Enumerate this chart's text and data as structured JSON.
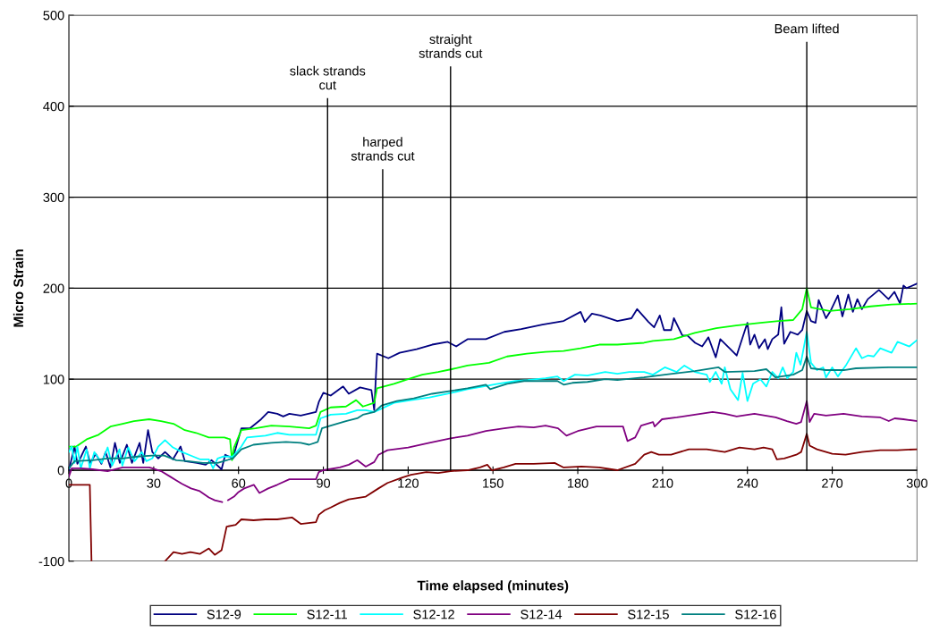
{
  "chart_data": {
    "type": "line",
    "xlabel": "Time elapsed (minutes)",
    "ylabel": "Micro Strain",
    "xlim": [
      0,
      300
    ],
    "xticks": [
      0,
      30,
      60,
      90,
      120,
      150,
      180,
      210,
      240,
      270,
      300
    ],
    "ylim": [
      -100,
      500
    ],
    "yticks": [
      -100,
      0,
      100,
      200,
      300,
      400,
      500
    ],
    "grid": "y",
    "legend": "bottom",
    "marker": "none",
    "line_style": "solid",
    "ref_lines": [
      {
        "axis": "x",
        "value": 91.5,
        "label": "slack strands\ncut",
        "color": "#000000"
      },
      {
        "axis": "x",
        "value": 111,
        "label": "harped\nstrands cut",
        "color": "#000000"
      },
      {
        "axis": "x",
        "value": 135,
        "label": "straight\nstrands cut",
        "color": "#000000"
      },
      {
        "axis": "x",
        "value": 261,
        "label": "Beam lifted",
        "color": "#000000"
      }
    ],
    "series": [
      {
        "name": "S12-9",
        "color": "#000080",
        "x": [
          0,
          2,
          3,
          4,
          6,
          7.5,
          9.5,
          11.5,
          13,
          14.7,
          16.3,
          18,
          20.5,
          22.3,
          25,
          26.3,
          28,
          29.5,
          31.6,
          34,
          36.8,
          39.5,
          41,
          45.3,
          48.4,
          50.5,
          52.6,
          54,
          55.3,
          58,
          61,
          64,
          68,
          70.5,
          73.7,
          75.8,
          78,
          82,
          87.4,
          88.4,
          90,
          92.6,
          97,
          99,
          103,
          107,
          108,
          109,
          113,
          117,
          123,
          128.5,
          134,
          137,
          141,
          147.5,
          154,
          160,
          167.5,
          175,
          181,
          182.5,
          185,
          188,
          194,
          199,
          201,
          205,
          207,
          209,
          210.5,
          213,
          214,
          217,
          218.8,
          221.5,
          224,
          226.2,
          228.8,
          230.4,
          234,
          236.2,
          240,
          241,
          242.5,
          244.1,
          246.2,
          247.2,
          248.8,
          250.9,
          252,
          253,
          255.2,
          257.8,
          259.4,
          261,
          262.5,
          264.1,
          265.2,
          267.8,
          269.4,
          272,
          273.6,
          275.7,
          277.3,
          278.9,
          280.5,
          282.6,
          286.5,
          289.9,
          292,
          294,
          295.2,
          296.3,
          300
        ],
        "values": [
          0,
          26,
          7,
          13,
          26,
          8,
          18,
          7,
          20,
          3,
          30,
          8,
          28,
          8,
          30,
          8,
          44,
          20,
          13,
          20,
          12,
          26,
          10,
          8,
          6,
          11,
          5,
          1,
          17,
          13,
          46,
          46,
          56,
          64,
          62,
          59,
          62,
          60,
          64,
          75,
          85,
          82,
          92,
          84,
          91,
          88,
          66,
          128,
          123,
          129,
          133,
          138,
          141,
          136,
          144,
          144,
          152,
          155,
          160,
          164,
          174,
          163,
          172,
          170,
          164,
          167,
          177,
          163,
          157,
          170,
          154,
          154,
          167,
          148,
          148,
          140,
          136,
          146,
          124,
          144,
          133,
          126,
          162,
          138,
          149,
          134,
          144,
          133,
          144,
          149,
          179,
          139,
          152,
          149,
          154,
          175,
          164,
          162,
          187,
          167,
          175,
          192,
          169,
          193,
          174,
          188,
          177,
          188,
          198,
          188,
          196,
          183,
          203,
          200,
          205
        ]
      },
      {
        "name": "S12-11",
        "color": "#00ff00",
        "x": [
          0,
          2.6,
          6.3,
          10.5,
          14.7,
          19,
          23,
          28.4,
          32.6,
          37,
          41,
          45,
          49.5,
          55,
          57,
          57.7,
          58.4,
          61,
          66,
          71.6,
          78,
          85,
          87.4,
          89,
          92.6,
          98,
          101.6,
          104,
          108,
          109,
          115,
          120,
          125,
          130.6,
          135.4,
          141,
          148.6,
          155,
          162,
          168.6,
          175,
          181,
          187.6,
          194,
          203.4,
          206.6,
          214,
          221.4,
          229,
          236,
          244.6,
          251,
          256.2,
          259.4,
          261,
          262.5,
          269,
          276.3,
          283.6,
          291,
          300
        ],
        "values": [
          26,
          26,
          34,
          39,
          48,
          51,
          54,
          56,
          54,
          51,
          44,
          41,
          36,
          36,
          34,
          11,
          25,
          44,
          46,
          49,
          48,
          46,
          49,
          64,
          69,
          70,
          77,
          70,
          74,
          90,
          95,
          100,
          105,
          108,
          111,
          115,
          118,
          125,
          128,
          130,
          131,
          134,
          138,
          138,
          140,
          142,
          144,
          151,
          156,
          159,
          162,
          164,
          165,
          177,
          200,
          179,
          175,
          177,
          180,
          182,
          183
        ]
      },
      {
        "name": "S12-12",
        "color": "#00ffff",
        "x": [
          0,
          1,
          2,
          3,
          4.2,
          6.3,
          7.4,
          9,
          11.6,
          13.7,
          15.3,
          17.9,
          18.9,
          21,
          23.2,
          25.8,
          27.4,
          29.5,
          31.6,
          34,
          36.8,
          40,
          43.2,
          46.3,
          49.5,
          51,
          52.6,
          54.7,
          58,
          61,
          63,
          69.5,
          73.7,
          78,
          82,
          87.4,
          89,
          92.6,
          98,
          102,
          105,
          108,
          115,
          121,
          127.5,
          134,
          141,
          146.5,
          151.7,
          158,
          162.3,
          168.6,
          172.8,
          175,
          179,
          183.4,
          189.7,
          194,
          198.2,
          203.5,
          206.6,
          210.8,
          215,
          217.7,
          221.4,
          225.6,
          226.7,
          228.8,
          230.9,
          232,
          234,
          236.7,
          238.3,
          240,
          242,
          244.6,
          246.7,
          248.8,
          250.9,
          252.5,
          254.1,
          256.2,
          257.3,
          258.8,
          261,
          262.5,
          264.6,
          266.8,
          267.8,
          270,
          272,
          275,
          278.4,
          280.5,
          282.6,
          284.7,
          287,
          291,
          293.1,
          297.3,
          300
        ],
        "values": [
          20,
          26,
          8,
          26,
          2,
          23,
          2,
          20,
          8,
          25,
          5,
          23,
          5,
          25,
          10,
          20,
          10,
          13,
          26,
          33,
          25,
          20,
          16,
          12,
          12,
          2,
          13,
          15,
          15,
          26,
          36,
          38,
          41,
          39,
          39,
          39,
          57,
          61,
          62,
          66,
          66,
          64,
          74,
          77,
          80,
          84,
          89,
          92,
          95,
          98,
          99,
          101,
          103,
          98,
          105,
          104,
          108,
          106,
          108,
          108,
          105,
          113,
          108,
          115,
          108,
          105,
          97,
          108,
          95,
          113,
          89,
          77,
          107,
          76,
          95,
          100,
          92,
          108,
          101,
          113,
          101,
          108,
          129,
          116,
          152,
          118,
          110,
          113,
          102,
          113,
          103,
          116,
          134,
          123,
          126,
          125,
          134,
          129,
          141,
          136,
          143
        ]
      },
      {
        "name": "S12-14",
        "color": "#800080",
        "x": [
          0,
          1,
          4.2,
          8.4,
          13.7,
          19,
          24.2,
          28.4,
          29.5,
          32.6,
          35.8,
          37.9,
          40,
          43.2,
          46.3,
          49.5,
          51.6,
          54.2,
          55.3,
          56.3,
          58.4,
          60,
          62,
          65.4,
          67.4,
          70.5,
          73.7,
          78,
          82,
          87.4,
          88.4,
          90,
          95.8,
          99,
          102,
          105,
          108,
          109.5,
          112.7,
          120,
          127.5,
          135,
          141,
          147.5,
          154,
          159,
          164.4,
          168.6,
          173,
          176,
          180,
          186.6,
          196,
          197.6,
          200.3,
          202.4,
          206.6,
          207.2,
          209.8,
          215,
          221.4,
          227.7,
          232,
          236.2,
          242.5,
          250,
          254,
          257.3,
          259,
          261,
          262,
          263.6,
          267.8,
          274,
          280.5,
          287,
          290,
          292.1,
          295.2,
          300
        ],
        "values": [
          -7,
          2,
          2,
          1,
          -1,
          3,
          3,
          3,
          2,
          -1,
          -7,
          -11,
          -15,
          -20,
          -23,
          -30,
          -33,
          -35,
          null,
          -33,
          -29,
          -24,
          -20,
          -16,
          -25,
          -20,
          -16,
          -10,
          -10,
          -10,
          -2,
          0,
          3,
          6,
          11,
          4,
          9,
          17,
          22,
          25,
          30,
          35,
          38,
          43,
          46,
          48,
          47,
          49,
          46,
          38,
          43,
          48,
          48,
          32,
          36,
          49,
          53,
          48,
          56,
          58,
          61,
          64,
          62,
          59,
          62,
          58,
          54,
          51,
          53,
          76,
          53,
          62,
          60,
          62,
          59,
          58,
          54,
          57,
          56,
          54
        ]
      },
      {
        "name": "S12-15",
        "color": "#800000",
        "x": [
          0,
          7.4,
          8,
          20,
          34,
          37,
          40,
          43,
          46.3,
          49.5,
          51.6,
          54,
          55.8,
          59,
          61,
          65.3,
          69.5,
          73.7,
          79,
          82,
          87.4,
          88.4,
          90.5,
          92.6,
          95.8,
          99,
          105,
          109.5,
          112.7,
          118,
          121,
          126.4,
          130.6,
          135,
          141,
          145.4,
          148,
          149.6,
          153.8,
          158,
          164.4,
          171.8,
          175,
          181.3,
          187.6,
          194,
          200.3,
          203.5,
          206,
          208.7,
          213,
          219.3,
          225.6,
          232,
          237.2,
          242.5,
          245.7,
          248.8,
          250.4,
          253,
          257.3,
          259,
          261,
          262,
          264.6,
          270,
          274.7,
          280.5,
          287,
          293,
          300
        ],
        "values": [
          -16,
          -16,
          -100,
          null,
          -100,
          -90,
          -92,
          -90,
          -92,
          -86,
          -93,
          -88,
          -62,
          -60,
          -54,
          -55,
          -54,
          -54,
          -52,
          -59,
          -57,
          -49,
          -44,
          -41,
          -36,
          -32,
          -29,
          -20,
          -14,
          -8,
          -5,
          -2,
          -3,
          -1,
          0,
          3,
          6,
          0,
          3,
          7,
          7,
          8,
          3,
          4,
          3,
          0,
          7,
          17,
          20,
          17,
          17,
          23,
          23,
          20,
          25,
          23,
          25,
          23,
          12,
          13,
          17,
          20,
          40,
          27,
          23,
          18,
          17,
          20,
          22,
          22,
          23
        ]
      },
      {
        "name": "S12-16",
        "color": "#008080",
        "x": [
          0,
          2,
          8.4,
          13.7,
          19,
          24.2,
          29.5,
          33.7,
          38,
          42.1,
          47.4,
          52.6,
          58,
          61,
          65.3,
          71.6,
          76.8,
          82,
          85,
          88,
          89.5,
          92.6,
          98,
          102,
          104,
          108,
          110.6,
          116,
          122,
          128.5,
          135,
          141,
          147.5,
          149,
          155,
          161,
          167.6,
          172.8,
          175,
          178.1,
          183.4,
          189.7,
          194,
          203.4,
          210.8,
          221.4,
          229.8,
          232,
          242.5,
          246.7,
          249.9,
          256.2,
          259.4,
          261,
          262.5,
          267.8,
          274.1,
          278.4,
          290,
          300
        ],
        "values": [
          2,
          10,
          11,
          13,
          13,
          15,
          16,
          16,
          11,
          10,
          8,
          8,
          13,
          23,
          28,
          30,
          31,
          30,
          28,
          31,
          46,
          49,
          54,
          57,
          61,
          64,
          71,
          76,
          79,
          84,
          87,
          90,
          94,
          89,
          95,
          98,
          98,
          98,
          94,
          96,
          97,
          100,
          99,
          102,
          105,
          109,
          113,
          108,
          109,
          111,
          102,
          105,
          110,
          125,
          112,
          110,
          110,
          112,
          113,
          113
        ]
      }
    ]
  }
}
